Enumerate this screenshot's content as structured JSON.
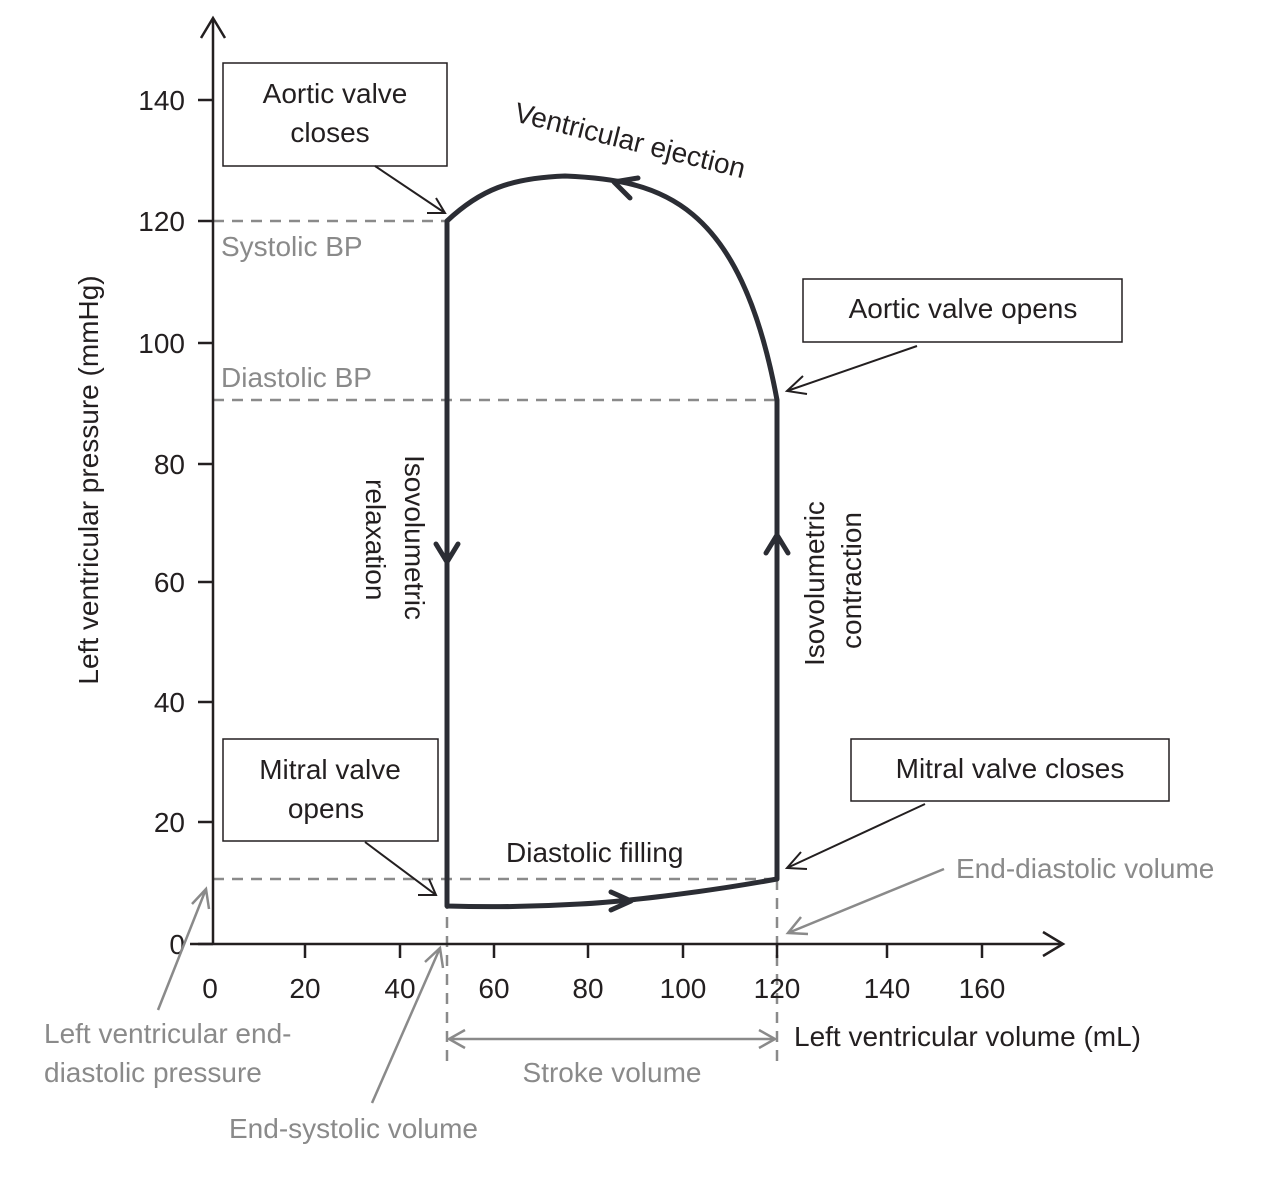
{
  "diagram": {
    "axes": {
      "y_title": "Left ventricular pressure (mmHg)",
      "x_title": "Left ventricular volume (mL)",
      "y_ticks": [
        "0",
        "20",
        "40",
        "60",
        "80",
        "100",
        "120",
        "140"
      ],
      "x_ticks": [
        "0",
        "20",
        "40",
        "60",
        "80",
        "100",
        "120",
        "140",
        "160"
      ]
    },
    "reference_lines": {
      "systolic_bp": "Systolic BP",
      "diastolic_bp": "Diastolic BP"
    },
    "boxes": {
      "aortic_closes": [
        "Aortic valve",
        "closes"
      ],
      "aortic_opens": "Aortic valve opens",
      "mitral_opens": [
        "Mitral valve",
        "opens"
      ],
      "mitral_closes": "Mitral valve closes"
    },
    "phases": {
      "ejection": "Ventricular ejection",
      "relaxation": [
        "Isovolumetric",
        "relaxation"
      ],
      "contraction": [
        "Isovolumetric",
        "contraction"
      ],
      "filling": "Diastolic filling"
    },
    "grey_labels": {
      "end_diastolic_volume": "End-diastolic volume",
      "lvedp": [
        "Left ventricular end-",
        "diastolic pressure"
      ],
      "stroke_volume": "Stroke volume",
      "end_systolic_volume": "End-systolic volume"
    },
    "colors": {
      "ink": "#231f20",
      "loop": "#2b2d34",
      "grey": "#8a8a8a"
    }
  }
}
